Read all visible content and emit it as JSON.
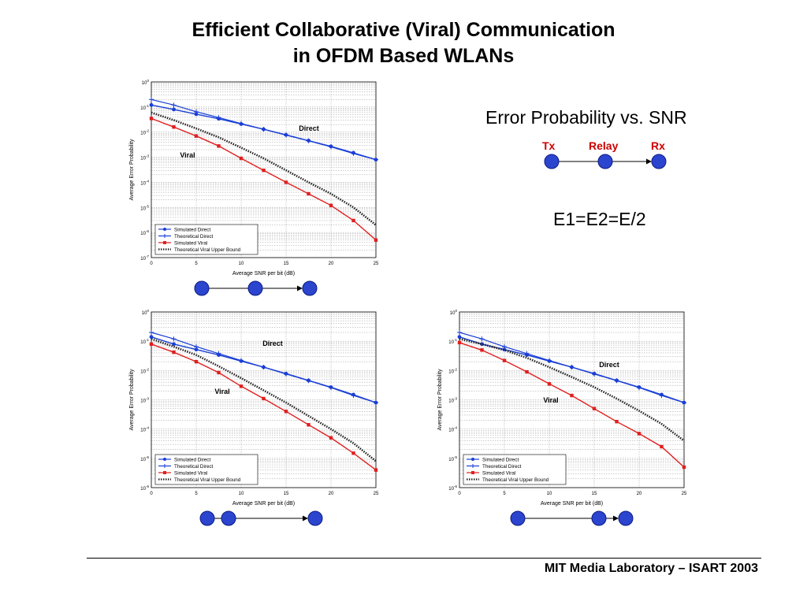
{
  "slide": {
    "title_line1": "Efficient Collaborative (Viral) Communication",
    "title_line2": "in OFDM Based WLANs",
    "side_title": "Error Probability vs. SNR",
    "node_labels": {
      "tx": "Tx",
      "relay": "Relay",
      "rx": "Rx"
    },
    "energy_equation": "E1=E2=E/2",
    "footer": "MIT Media Laboratory – ISART 2003"
  },
  "colors": {
    "direct": "#1a3fd6",
    "viral": "#e01f1f",
    "bound": "#222222",
    "node_fill": "#2c45cf",
    "node_label": "#cc0000"
  },
  "topology": [
    "tx",
    "relay",
    "rx"
  ],
  "chart_data": [
    {
      "type": "line",
      "xlabel": "Average SNR per bit (dB)",
      "ylabel": "Average Error Probability",
      "xlim": [
        0,
        25
      ],
      "ylim": [
        1e-07,
        1
      ],
      "yscale": "log",
      "x_ticks": [
        "0",
        "5",
        "10",
        "15",
        "20",
        "25"
      ],
      "y_ticks": [
        "10^0",
        "10^-1",
        "10^-2",
        "10^-3",
        "10^-4",
        "10^-5",
        "10^-6",
        "10^-7"
      ],
      "grid": true,
      "legend_position": "bottom-left",
      "annotations": [
        "Direct",
        "Viral"
      ],
      "x": [
        0,
        2.5,
        5,
        7.5,
        10,
        12.5,
        15,
        17.5,
        20,
        22.5,
        25
      ],
      "series": [
        {
          "name": "Simulated Direct",
          "style": "direct-sim",
          "values": [
            0.12,
            0.08,
            0.052,
            0.034,
            0.021,
            0.013,
            0.0078,
            0.0046,
            0.0027,
            0.0015,
            0.0008
          ]
        },
        {
          "name": "Theoretical Direct",
          "style": "direct-theory",
          "values": [
            0.2,
            0.12,
            0.065,
            0.038,
            0.022,
            0.013,
            0.0076,
            0.0045,
            0.0026,
            0.0014,
            0.0008
          ]
        },
        {
          "name": "Simulated Viral",
          "style": "viral-sim",
          "values": [
            0.035,
            0.016,
            0.007,
            0.0028,
            0.0009,
            0.0003,
            0.0001,
            3.5e-05,
            1.2e-05,
            3e-06,
            5e-07
          ]
        },
        {
          "name": "Theoretical Viral Upper Bound",
          "style": "bound",
          "values": [
            0.06,
            0.03,
            0.014,
            0.0062,
            0.0024,
            0.0009,
            0.0003,
            0.0001,
            3.5e-05,
            1e-05,
            2e-06
          ]
        }
      ]
    },
    {
      "type": "line",
      "xlabel": "Average SNR per bit (dB)",
      "ylabel": "Average Error Probability",
      "xlim": [
        0,
        25
      ],
      "ylim": [
        1e-06,
        1
      ],
      "yscale": "log",
      "x_ticks": [
        "0",
        "5",
        "10",
        "15",
        "20",
        "25"
      ],
      "y_ticks": [
        "10^0",
        "10^-1",
        "10^-2",
        "10^-3",
        "10^-4",
        "10^-5",
        "10^-6"
      ],
      "grid": true,
      "legend_position": "bottom-left",
      "annotations": [
        "Direct",
        "Viral"
      ],
      "x": [
        0,
        2.5,
        5,
        7.5,
        10,
        12.5,
        15,
        17.5,
        20,
        22.5,
        25
      ],
      "series": [
        {
          "name": "Simulated Direct",
          "style": "direct-sim",
          "values": [
            0.14,
            0.08,
            0.052,
            0.034,
            0.021,
            0.013,
            0.0078,
            0.0046,
            0.0027,
            0.0015,
            0.0008
          ]
        },
        {
          "name": "Theoretical Direct",
          "style": "direct-theory",
          "values": [
            0.2,
            0.12,
            0.065,
            0.038,
            0.022,
            0.013,
            0.0076,
            0.0045,
            0.0026,
            0.0014,
            0.0008
          ]
        },
        {
          "name": "Simulated Viral",
          "style": "viral-sim",
          "values": [
            0.08,
            0.042,
            0.02,
            0.0085,
            0.0029,
            0.0011,
            0.0004,
            0.00014,
            5e-05,
            1.5e-05,
            4e-06
          ]
        },
        {
          "name": "Theoretical Viral Upper Bound",
          "style": "bound",
          "values": [
            0.12,
            0.065,
            0.034,
            0.014,
            0.0055,
            0.0021,
            0.0008,
            0.00028,
            0.0001,
            3.3e-05,
            8e-06
          ]
        }
      ]
    },
    {
      "type": "line",
      "xlabel": "Average SNR per bit (dB)",
      "ylabel": "Average Error Probability",
      "xlim": [
        0,
        25
      ],
      "ylim": [
        1e-06,
        1
      ],
      "yscale": "log",
      "x_ticks": [
        "0",
        "5",
        "10",
        "15",
        "20",
        "25"
      ],
      "y_ticks": [
        "10^0",
        "10^-1",
        "10^-2",
        "10^-3",
        "10^-4",
        "10^-5",
        "10^-6"
      ],
      "grid": true,
      "legend_position": "bottom-left",
      "annotations": [
        "Direct",
        "Viral"
      ],
      "x": [
        0,
        2.5,
        5,
        7.5,
        10,
        12.5,
        15,
        17.5,
        20,
        22.5,
        25
      ],
      "series": [
        {
          "name": "Simulated Direct",
          "style": "direct-sim",
          "values": [
            0.14,
            0.08,
            0.052,
            0.034,
            0.021,
            0.013,
            0.0078,
            0.0046,
            0.0027,
            0.0015,
            0.0008
          ]
        },
        {
          "name": "Theoretical Direct",
          "style": "direct-theory",
          "values": [
            0.2,
            0.12,
            0.065,
            0.038,
            0.022,
            0.013,
            0.0076,
            0.0045,
            0.0026,
            0.0014,
            0.0008
          ]
        },
        {
          "name": "Simulated Viral",
          "style": "viral-sim",
          "values": [
            0.09,
            0.05,
            0.022,
            0.009,
            0.0035,
            0.0014,
            0.0005,
            0.00018,
            7e-05,
            2.5e-05,
            5e-06
          ]
        },
        {
          "name": "Theoretical Viral Upper Bound",
          "style": "bound",
          "values": [
            0.12,
            0.08,
            0.05,
            0.027,
            0.013,
            0.006,
            0.0027,
            0.0011,
            0.00042,
            0.00015,
            4e-05
          ]
        }
      ]
    }
  ]
}
